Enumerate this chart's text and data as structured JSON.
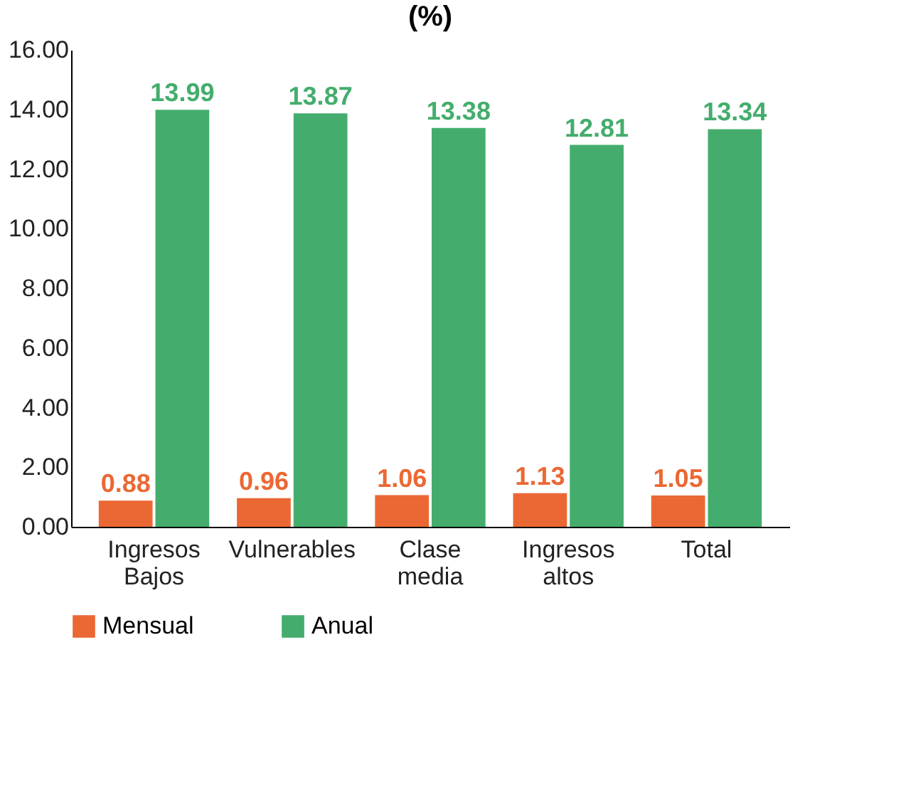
{
  "chart_data": {
    "type": "bar",
    "title": "(%)",
    "categories": [
      "Ingresos Bajos",
      "Vulnerables",
      "Clase media",
      "Ingresos altos",
      "Total"
    ],
    "series": [
      {
        "name": "Mensual",
        "color": "#eb6834",
        "values": [
          0.88,
          0.96,
          1.06,
          1.13,
          1.05
        ]
      },
      {
        "name": "Anual",
        "color": "#44ad6d",
        "values": [
          13.99,
          13.87,
          13.38,
          12.81,
          13.34
        ]
      }
    ],
    "ylim": [
      0,
      16
    ],
    "yticks": [
      {
        "value": 0,
        "label": "0.00"
      },
      {
        "value": 2,
        "label": "2.00"
      },
      {
        "value": 4,
        "label": "4.00"
      },
      {
        "value": 6,
        "label": "6.00"
      },
      {
        "value": 8,
        "label": "8.00"
      },
      {
        "value": 10,
        "label": "10.00"
      },
      {
        "value": 12,
        "label": "12.00"
      },
      {
        "value": 14,
        "label": "14.00"
      },
      {
        "value": 16,
        "label": "16.00"
      }
    ],
    "data_labels": true,
    "legend": "bottom",
    "grid": false
  }
}
